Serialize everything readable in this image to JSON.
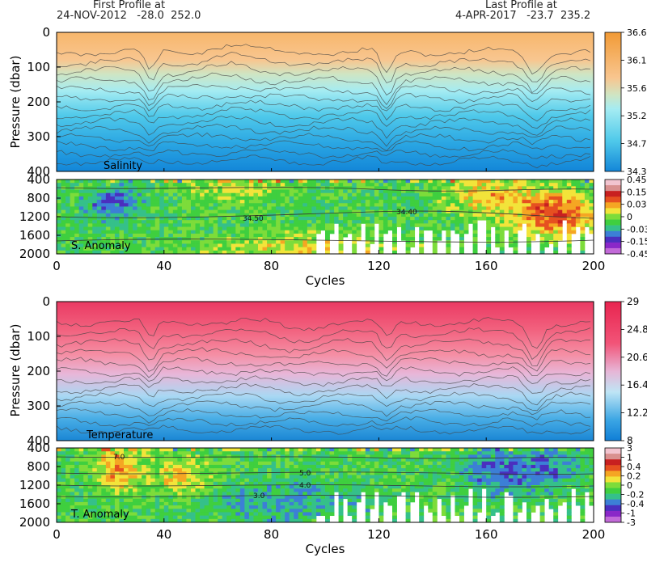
{
  "header": {
    "first_label": "First Profile at",
    "first_value": "24-NOV-2012   -28.0  252.0",
    "last_label": "Last Profile at",
    "last_value": "4-APR-2017   -23.7  235.2"
  },
  "chart_data": [
    {
      "type": "heatmap",
      "name": "Salinity",
      "ylabel": "Pressure (dbar)",
      "ylim": [
        400,
        0
      ],
      "yticks": [
        "0",
        "100",
        "200",
        "300",
        "400"
      ],
      "xlim": [
        0,
        200
      ],
      "colorbar": [
        "36.6",
        "36.14",
        "35.68",
        "35.22",
        "34.76",
        "34.3"
      ],
      "colors": {
        "high": "#f5a94e",
        "mid": "#c8e6c9",
        "low": "#1a8fd8"
      },
      "layers": [
        {
          "depth": 0,
          "value": 36.6
        },
        {
          "depth": 80,
          "value": 36.2
        },
        {
          "depth": 130,
          "value": 35.8
        },
        {
          "depth": 180,
          "value": 35.4
        },
        {
          "depth": 250,
          "value": 35.0
        },
        {
          "depth": 330,
          "value": 34.7
        },
        {
          "depth": 400,
          "value": 34.4
        }
      ]
    },
    {
      "type": "heatmap",
      "name": "S. Anomaly",
      "ylim": [
        2000,
        400
      ],
      "yticks": [
        "400",
        "800",
        "1200",
        "1600",
        "2000"
      ],
      "xlim": [
        0,
        200
      ],
      "xticks": [
        "0",
        "40",
        "80",
        "120",
        "160",
        "200"
      ],
      "xlabel": "Cycles",
      "colorbar": [
        "0.45",
        "0.15",
        "0.03",
        "0",
        "-0.03",
        "-0.15",
        "-0.45"
      ],
      "contour_labels": [
        "34.50",
        "34.40"
      ]
    },
    {
      "type": "heatmap",
      "name": "Temperature",
      "ylabel": "Pressure (dbar)",
      "ylim": [
        400,
        0
      ],
      "yticks": [
        "0",
        "100",
        "200",
        "300",
        "400"
      ],
      "xlim": [
        0,
        200
      ],
      "colorbar": [
        "29",
        "24.8",
        "20.6",
        "16.4",
        "12.2",
        "8"
      ],
      "layers": [
        {
          "depth": 0,
          "value": 29
        },
        {
          "depth": 60,
          "value": 25
        },
        {
          "depth": 150,
          "value": 21
        },
        {
          "depth": 230,
          "value": 17
        },
        {
          "depth": 320,
          "value": 13
        },
        {
          "depth": 400,
          "value": 9
        }
      ]
    },
    {
      "type": "heatmap",
      "name": "T. Anomaly",
      "ylim": [
        2000,
        400
      ],
      "yticks": [
        "400",
        "800",
        "1200",
        "1600",
        "2000"
      ],
      "xlim": [
        0,
        200
      ],
      "xticks": [
        "0",
        "40",
        "80",
        "120",
        "160",
        "200"
      ],
      "xlabel": "Cycles",
      "colorbar": [
        "3",
        "1",
        "0.4",
        "0.2",
        "0",
        "-0.2",
        "-0.4",
        "-1",
        "-3"
      ],
      "contour_labels": [
        "7.0",
        "5.0",
        "4.0",
        "3.0"
      ]
    }
  ]
}
